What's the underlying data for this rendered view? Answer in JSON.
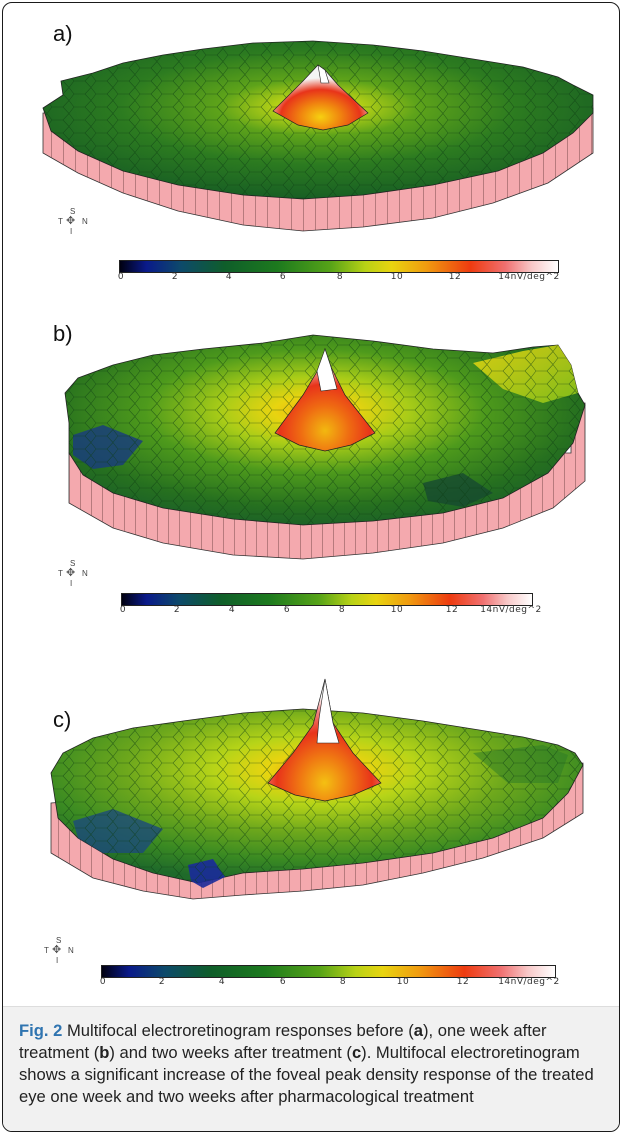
{
  "panels": [
    {
      "label": "a)",
      "compass": {
        "top": "S",
        "left": "T",
        "right": "N",
        "bottom": "I"
      },
      "colorbar_ticks": [
        "0",
        "2",
        "4",
        "6",
        "8",
        "10",
        "12",
        "14nV/deg^2"
      ]
    },
    {
      "label": "b)",
      "compass": {
        "top": "S",
        "left": "T",
        "right": "N",
        "bottom": "I"
      },
      "colorbar_ticks": [
        "0",
        "2",
        "4",
        "6",
        "8",
        "10",
        "12",
        "14nV/deg^2"
      ]
    },
    {
      "label": "c)",
      "compass": {
        "top": "S",
        "left": "T",
        "right": "N",
        "bottom": "I"
      },
      "colorbar_ticks": [
        "0",
        "2",
        "4",
        "6",
        "8",
        "10",
        "12",
        "14nV/deg^2"
      ]
    }
  ],
  "caption": {
    "fig_label": "Fig. 2",
    "part1": " Multifocal electroretinogram responses before (",
    "a": "a",
    "part2": "), one week after treatment (",
    "b": "b",
    "part3": ") and two weeks after treatment (",
    "c": "c",
    "part4": "). Multifocal electroretinogram shows a significant increase of the foveal peak density response of the treated eye one week and two weeks after pharmacological treatment"
  },
  "colors": {
    "plot_side": "#f4a9ae",
    "surface_low": "#1a5e2a",
    "surface_mid": "#6aa61c",
    "surface_peak": "#e83a12",
    "caption_bg": "#f1f1f1",
    "fig_label": "#2f74b0"
  }
}
